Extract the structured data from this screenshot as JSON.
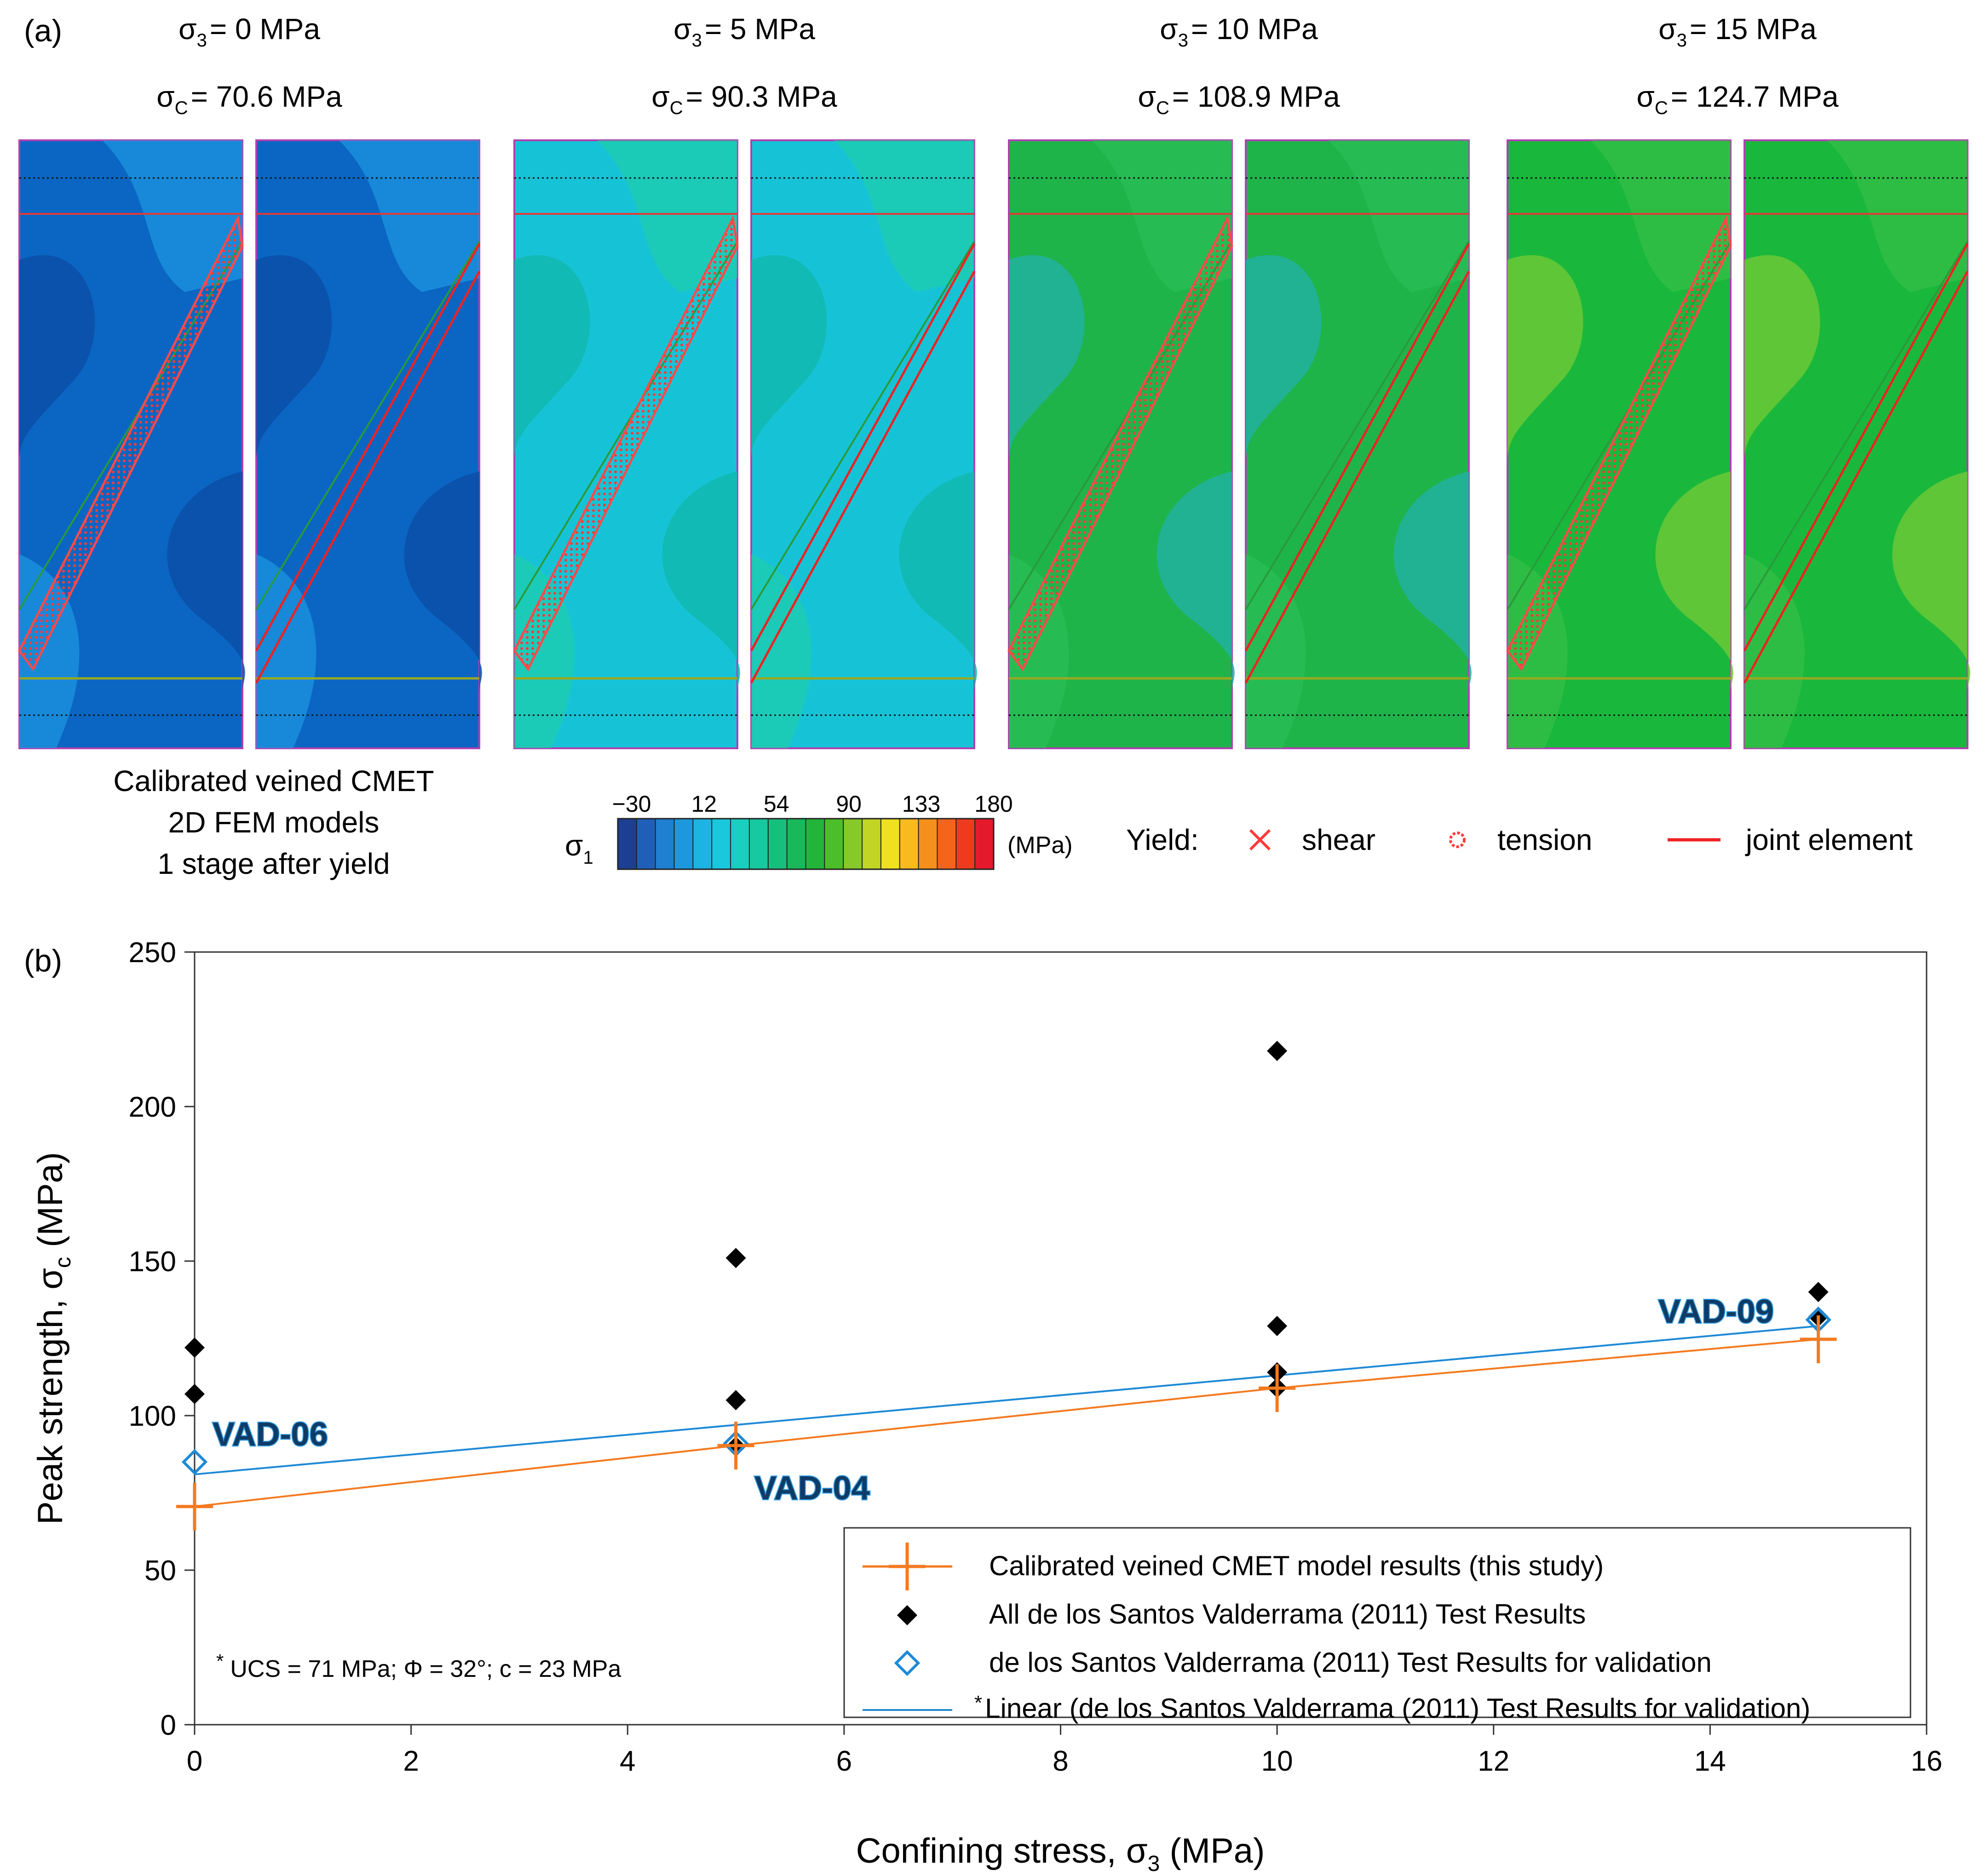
{
  "panel_a": {
    "label": "(a)",
    "models": [
      {
        "s3_sym": "σ",
        "s3_sub": "3",
        "s3_val": "= 0 MPa",
        "sc_sym": "σ",
        "sc_sub": "C",
        "sc_val": "= 70.6 MPa",
        "fill": "#0a66c2",
        "fill2": "#1fa0e6",
        "patch": "#0b4fa8"
      },
      {
        "s3_sym": "σ",
        "s3_sub": "3",
        "s3_val": "= 5 MPa",
        "sc_sym": "σ",
        "sc_sub": "C",
        "sc_val": "= 90.3 MPa",
        "fill": "#16c3d6",
        "fill2": "#22cfa4",
        "patch": "#12b9b0"
      },
      {
        "s3_sym": "σ",
        "s3_sub": "3",
        "s3_val": "= 10 MPa",
        "sc_sym": "σ",
        "sc_sub": "C",
        "sc_val": "= 108.9 MPa",
        "fill": "#1fb44a",
        "fill2": "#2cc25a",
        "patch": "#22b0a0"
      },
      {
        "s3_sym": "σ",
        "s3_sub": "3",
        "s3_val": "= 15 MPa",
        "sc_sym": "σ",
        "sc_sub": "C",
        "sc_val": "= 124.7 MPa",
        "fill": "#19b83c",
        "fill2": "#3cc04a",
        "patch": "#6cc836"
      }
    ],
    "caption": [
      "Calibrated veined CMET",
      "2D FEM models",
      "1 stage after yield"
    ],
    "colorbar": {
      "symbol": "σ",
      "sub": "1",
      "ticks": [
        "−30",
        "12",
        "54",
        "90",
        "133",
        "180"
      ],
      "unit": "(MPa)",
      "colors": [
        "#1c3f94",
        "#1f5fb8",
        "#1f7fd0",
        "#1e98dc",
        "#1db3e2",
        "#19c8dc",
        "#18cfc0",
        "#17c8a0",
        "#16c07c",
        "#1ab85a",
        "#23b53a",
        "#4cbe2a",
        "#86c928",
        "#c2d424",
        "#f0e020",
        "#f7bb1d",
        "#f6901c",
        "#f4651b",
        "#ee3b1f",
        "#e5192c"
      ]
    },
    "yield_legend": {
      "title": "Yield:",
      "shear": "shear",
      "tension": "tension",
      "joint": "joint element"
    }
  },
  "panel_b": {
    "label": "(b)"
  },
  "chart_data": {
    "type": "scatter",
    "xlabel": "Confining stress, σ",
    "xlabel_sub": "3",
    "xlabel_unit": " (MPa)",
    "ylabel": "Peak strength, σ",
    "ylabel_sub": "c",
    "ylabel_unit": " (MPa)",
    "xlim": [
      0,
      16
    ],
    "ylim": [
      0,
      250
    ],
    "xticks": [
      0,
      2,
      4,
      6,
      8,
      10,
      12,
      14,
      16
    ],
    "yticks": [
      0,
      50,
      100,
      150,
      200,
      250
    ],
    "series": [
      {
        "name": "Calibrated veined CMET model results (this study)",
        "marker": "cross",
        "color": "#f47a20",
        "x": [
          0,
          5,
          10,
          15
        ],
        "y": [
          70.6,
          90.3,
          108.9,
          124.7
        ]
      },
      {
        "name": "All de los Santos Valderrama (2011) Test Results",
        "marker": "diamond-filled",
        "color": "#000000",
        "x": [
          0,
          0,
          5,
          5,
          5,
          10,
          10,
          10,
          10,
          15,
          15
        ],
        "y": [
          122,
          107,
          151,
          105,
          90,
          218,
          129,
          114,
          109,
          140,
          132
        ]
      },
      {
        "name": "de los Santos Valderrama (2011) Test Results for validation",
        "marker": "diamond-open",
        "color": "#1f8ad6",
        "x": [
          0,
          5,
          15
        ],
        "y": [
          85,
          91,
          131
        ]
      },
      {
        "name": "Linear (de los Santos Valderrama (2011) Test Results for validation)",
        "marker": "line",
        "color": "#1f8ad6",
        "x": [
          0,
          15
        ],
        "y": [
          81,
          129
        ]
      }
    ],
    "legend_prefix_star": "*",
    "annotations": [
      "VAD-06",
      "VAD-04",
      "VAD-09"
    ],
    "footnote_star": "*",
    "footnote": "UCS = 71 MPa; Φ = 32°; c = 23 MPa"
  }
}
